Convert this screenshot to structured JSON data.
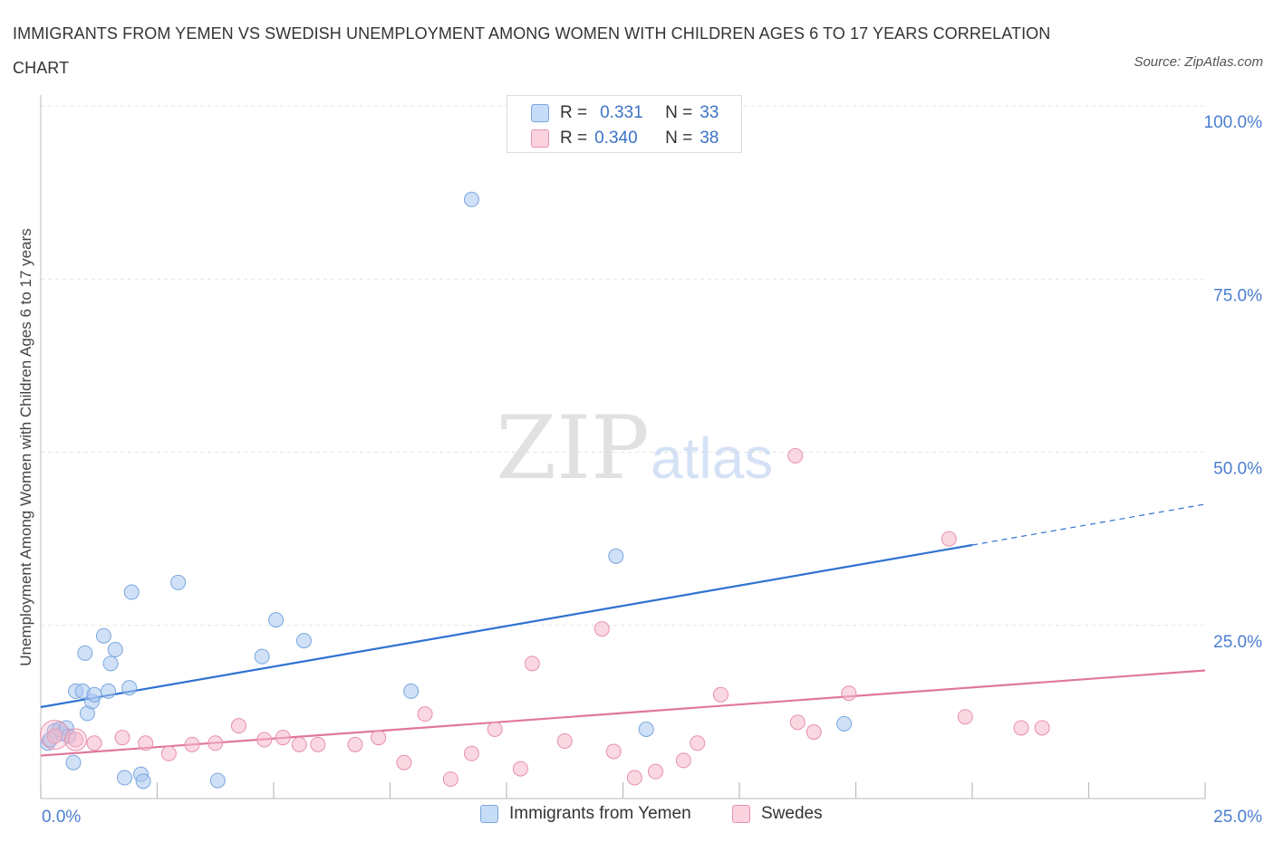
{
  "title": "IMMIGRANTS FROM YEMEN VS SWEDISH UNEMPLOYMENT AMONG WOMEN WITH CHILDREN AGES 6 TO 17 YEARS CORRELATION CHART",
  "source": "Source: ZipAtlas.com",
  "watermark": {
    "zip": "ZIP",
    "atlas": "atlas"
  },
  "legend": {
    "r_label": "R =",
    "n_label": "N =",
    "rows": [
      {
        "r": "0.331",
        "n": "33",
        "color": "#a9c8f0"
      },
      {
        "r": "0.340",
        "n": "38",
        "color": "#f5b8cb"
      }
    ]
  },
  "bottom_legend": [
    "Immigrants from Yemen",
    "Swedes"
  ],
  "colors": {
    "blue_fill": "#a9c8f0",
    "blue_stroke": "#7aa6de",
    "blue_line": "#2f72d0",
    "pink_fill": "#f5b8cb",
    "pink_stroke": "#e890ab",
    "pink_line": "#e0779c",
    "tick_label": "#4a7fcf",
    "grid": "#e3e3e3"
  },
  "chart_data": {
    "type": "scatter",
    "title": "IMMIGRANTS FROM YEMEN VS SWEDISH UNEMPLOYMENT AMONG WOMEN WITH CHILDREN AGES 6 TO 17 YEARS CORRELATION CHART",
    "xlabel": "",
    "ylabel": "Unemployment Among Women with Children Ages 6 to 17 years",
    "xlim": [
      0,
      25
    ],
    "ylim": [
      0,
      100
    ],
    "x_tick_labels": [
      "0.0%",
      "25.0%"
    ],
    "y_ticks": [
      25,
      50,
      75,
      100
    ],
    "y_tick_labels": [
      "25.0%",
      "50.0%",
      "75.0%",
      "100.0%"
    ],
    "grid": true,
    "series": [
      {
        "name": "Immigrants from Yemen",
        "r": 0.331,
        "n": 33,
        "points": [
          [
            0.15,
            8.0
          ],
          [
            0.3,
            9.8
          ],
          [
            0.45,
            9.4
          ],
          [
            0.4,
            10.0
          ],
          [
            0.55,
            10.2
          ],
          [
            0.7,
            5.2
          ],
          [
            0.75,
            15.5
          ],
          [
            0.9,
            15.5
          ],
          [
            0.95,
            21.0
          ],
          [
            1.0,
            12.3
          ],
          [
            1.1,
            14.0
          ],
          [
            1.15,
            15.0
          ],
          [
            1.35,
            23.5
          ],
          [
            1.45,
            15.5
          ],
          [
            1.5,
            19.5
          ],
          [
            1.6,
            21.5
          ],
          [
            1.8,
            3.0
          ],
          [
            1.9,
            16.0
          ],
          [
            1.95,
            29.8
          ],
          [
            2.15,
            3.5
          ],
          [
            2.2,
            2.5
          ],
          [
            2.95,
            31.2
          ],
          [
            3.8,
            2.6
          ],
          [
            4.75,
            20.5
          ],
          [
            5.05,
            25.8
          ],
          [
            5.65,
            22.8
          ],
          [
            7.95,
            15.5
          ],
          [
            9.25,
            86.5
          ],
          [
            12.35,
            35.0
          ],
          [
            13.0,
            10.0
          ],
          [
            17.25,
            10.8
          ],
          [
            0.2,
            8.5
          ],
          [
            0.6,
            9.0
          ]
        ],
        "trend": {
          "x0": 0.0,
          "y0": 13.2,
          "x1": 20.0,
          "y1": 36.6,
          "dash_to_x": 25.0,
          "dash_to_y": 42.5
        }
      },
      {
        "name": "Swedes",
        "r": 0.34,
        "n": 38,
        "points": [
          [
            0.3,
            9.0
          ],
          [
            0.75,
            8.5
          ],
          [
            1.15,
            8.0
          ],
          [
            1.75,
            8.8
          ],
          [
            2.25,
            8.0
          ],
          [
            2.75,
            6.5
          ],
          [
            3.25,
            7.8
          ],
          [
            3.75,
            8.0
          ],
          [
            4.25,
            10.5
          ],
          [
            4.8,
            8.5
          ],
          [
            5.2,
            8.8
          ],
          [
            5.55,
            7.8
          ],
          [
            5.95,
            7.8
          ],
          [
            6.75,
            7.8
          ],
          [
            7.25,
            8.8
          ],
          [
            7.8,
            5.2
          ],
          [
            8.25,
            12.2
          ],
          [
            8.8,
            2.8
          ],
          [
            9.25,
            6.5
          ],
          [
            9.75,
            10.0
          ],
          [
            10.3,
            4.3
          ],
          [
            10.55,
            19.5
          ],
          [
            11.25,
            8.3
          ],
          [
            12.05,
            24.5
          ],
          [
            12.3,
            6.8
          ],
          [
            12.75,
            3.0
          ],
          [
            13.2,
            3.9
          ],
          [
            13.8,
            5.5
          ],
          [
            14.1,
            8.0
          ],
          [
            14.6,
            15.0
          ],
          [
            16.2,
            49.5
          ],
          [
            16.25,
            11.0
          ],
          [
            16.6,
            9.6
          ],
          [
            17.35,
            15.2
          ],
          [
            19.5,
            37.5
          ],
          [
            19.85,
            11.8
          ],
          [
            21.05,
            10.2
          ],
          [
            21.5,
            10.2
          ]
        ],
        "trend": {
          "x0": 0.0,
          "y0": 6.2,
          "x1": 25.0,
          "y1": 18.5
        }
      }
    ]
  }
}
